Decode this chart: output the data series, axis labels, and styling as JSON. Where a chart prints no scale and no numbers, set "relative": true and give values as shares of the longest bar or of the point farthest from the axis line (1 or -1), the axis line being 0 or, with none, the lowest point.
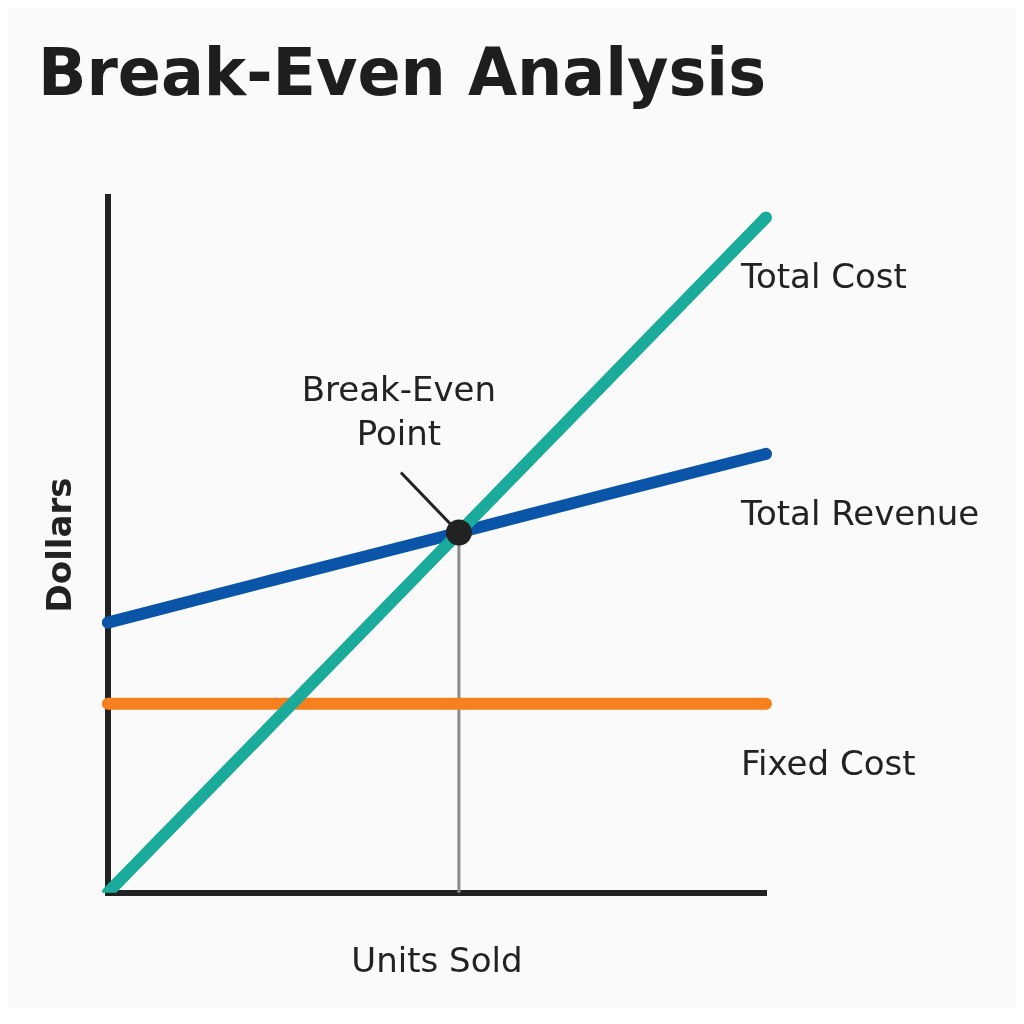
{
  "chart_data": {
    "type": "line",
    "title": "Break-Even Analysis",
    "xlabel": "Units Sold",
    "ylabel": "Dollars",
    "relative": true,
    "legend": false,
    "grid": false,
    "marker": "none",
    "line_style": "solid",
    "categories": [
      null,
      null,
      null,
      null,
      null
    ],
    "series": [
      {
        "name": "Total Cost",
        "color": "#1aab9b",
        "values": [
          0,
          0.25,
          0.5,
          0.75,
          1
        ]
      },
      {
        "name": "Total Revenue",
        "color": "#0a55a8",
        "values": [
          0.4,
          0.463,
          0.525,
          0.588,
          0.65
        ]
      },
      {
        "name": "Fixed Cost",
        "color": "#f7801e",
        "values": [
          0.28,
          0.28,
          0.28,
          0.28,
          0.28
        ]
      }
    ],
    "annotations": [
      "Break-Even Point"
    ]
  }
}
